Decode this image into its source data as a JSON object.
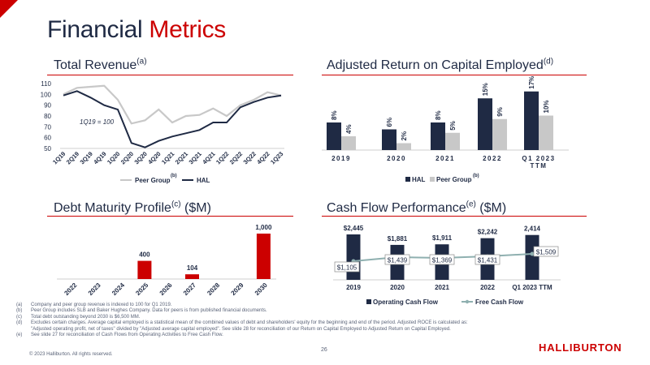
{
  "slide": {
    "title_main": "Financial ",
    "title_accent": "Metrics",
    "page_number": "26",
    "copyright": "© 2023 Halliburton. All rights reserved.",
    "brand": "HALLIBURTON",
    "colors": {
      "accent": "#cc0000",
      "navy": "#1f2a44",
      "gray": "#c8c8c8",
      "teal": "#8fb0b0"
    },
    "footnotes": [
      {
        "mark": "(a)",
        "text": "Company and peer group revenue is indexed to 100 for Q1 2019."
      },
      {
        "mark": "(b)",
        "text": "Peer Group includes SLB and Baker Hughes Company. Data for peers is from published financial documents."
      },
      {
        "mark": "(c)",
        "text": "Total debt outstanding beyond 2030 is $6,500 MM."
      },
      {
        "mark": "(d)",
        "text": "Excludes certain charges. Average capital employed is a statistical mean of the combined values of debt and shareholders' equity for the beginning and end of the period. Adjusted ROCE is calculated as:"
      },
      {
        "mark": "",
        "text": "\"Adjusted operating profit, net of taxes\" divided by \"Adjusted average capital employed\". See slide 28 for reconciliation of our Return on Capital Employed to Adjusted Return on Capital Employed."
      },
      {
        "mark": "(e)",
        "text": "See slide 27 for reconciliation of Cash Flows from Operating Activities to Free Cash Flow."
      }
    ]
  },
  "chart_data": [
    {
      "id": "revenue",
      "type": "line",
      "title": "Total Revenue",
      "title_sup": "(a)",
      "annotation": "1Q19 = 100",
      "legend_sup": "(b)",
      "categories": [
        "1Q19",
        "2Q19",
        "3Q19",
        "4Q19",
        "1Q20",
        "2Q20",
        "3Q20",
        "4Q20",
        "1Q21",
        "2Q21",
        "3Q21",
        "4Q21",
        "1Q22",
        "2Q22",
        "3Q22",
        "4Q22",
        "1Q23"
      ],
      "ylim": [
        50,
        110
      ],
      "yticks": [
        50,
        60,
        70,
        80,
        90,
        100,
        110
      ],
      "series": [
        {
          "name": "Peer Group",
          "color": "#c8c8c8",
          "values": [
            100,
            106,
            107,
            108,
            95,
            73,
            76,
            86,
            74,
            80,
            81,
            87,
            80,
            90,
            95,
            102,
            99
          ]
        },
        {
          "name": "HAL",
          "color": "#1f2a44",
          "values": [
            99,
            103,
            97,
            90,
            86,
            55,
            51,
            57,
            61,
            64,
            67,
            74,
            74,
            88,
            93,
            97,
            99
          ]
        }
      ]
    },
    {
      "id": "roce",
      "type": "bar",
      "title": "Adjusted Return on Capital Employed",
      "title_sup": "(d)",
      "legend_sup": "(b)",
      "categories": [
        "2019",
        "2020",
        "2021",
        "2022",
        "Q1 2023 TTM"
      ],
      "series": [
        {
          "name": "HAL",
          "color": "#1f2a44",
          "values": [
            8,
            6,
            8,
            15,
            17
          ],
          "labels": [
            "8%",
            "6%",
            "8%",
            "15%",
            "17%"
          ]
        },
        {
          "name": "Peer Group",
          "color": "#c8c8c8",
          "values": [
            4,
            2,
            5,
            9,
            10
          ],
          "labels": [
            "4%",
            "2%",
            "5%",
            "9%",
            "10%"
          ]
        }
      ],
      "ylim": [
        0,
        18
      ]
    },
    {
      "id": "debt",
      "type": "bar",
      "title": "Debt Maturity Profile",
      "title_sup": "(c)",
      "title_suffix": " ($M)",
      "categories": [
        "2022",
        "2023",
        "2024",
        "2025",
        "2026",
        "2027",
        "2028",
        "2029",
        "2030"
      ],
      "values": [
        0,
        0,
        0,
        400,
        0,
        104,
        0,
        0,
        1000
      ],
      "labels": [
        "",
        "",
        "",
        "400",
        "",
        "104",
        "",
        "",
        "1,000"
      ],
      "ylim": [
        0,
        1000
      ],
      "color": "#cc0000"
    },
    {
      "id": "cashflow",
      "type": "bar",
      "title": "Cash Flow Performance",
      "title_sup": "(e)",
      "title_suffix": " ($M)",
      "categories": [
        "2019",
        "2020",
        "2021",
        "2022",
        "Q1 2023 TTM"
      ],
      "series": [
        {
          "name": "Operating Cash Flow",
          "type": "bar",
          "color": "#1f2a44",
          "values": [
            2445,
            1881,
            1911,
            2242,
            2414
          ],
          "labels": [
            "$2,445",
            "$1,881",
            "$1,911",
            "$2,242",
            "2,414"
          ]
        },
        {
          "name": "Free Cash Flow",
          "type": "line",
          "color": "#8fb0b0",
          "values": [
            1105,
            1439,
            1369,
            1431,
            1509
          ],
          "labels": [
            "$1,105",
            "$1,439",
            "$1,369",
            "$1,431",
            "$1,509"
          ]
        }
      ],
      "ylim": [
        0,
        2500
      ]
    }
  ]
}
